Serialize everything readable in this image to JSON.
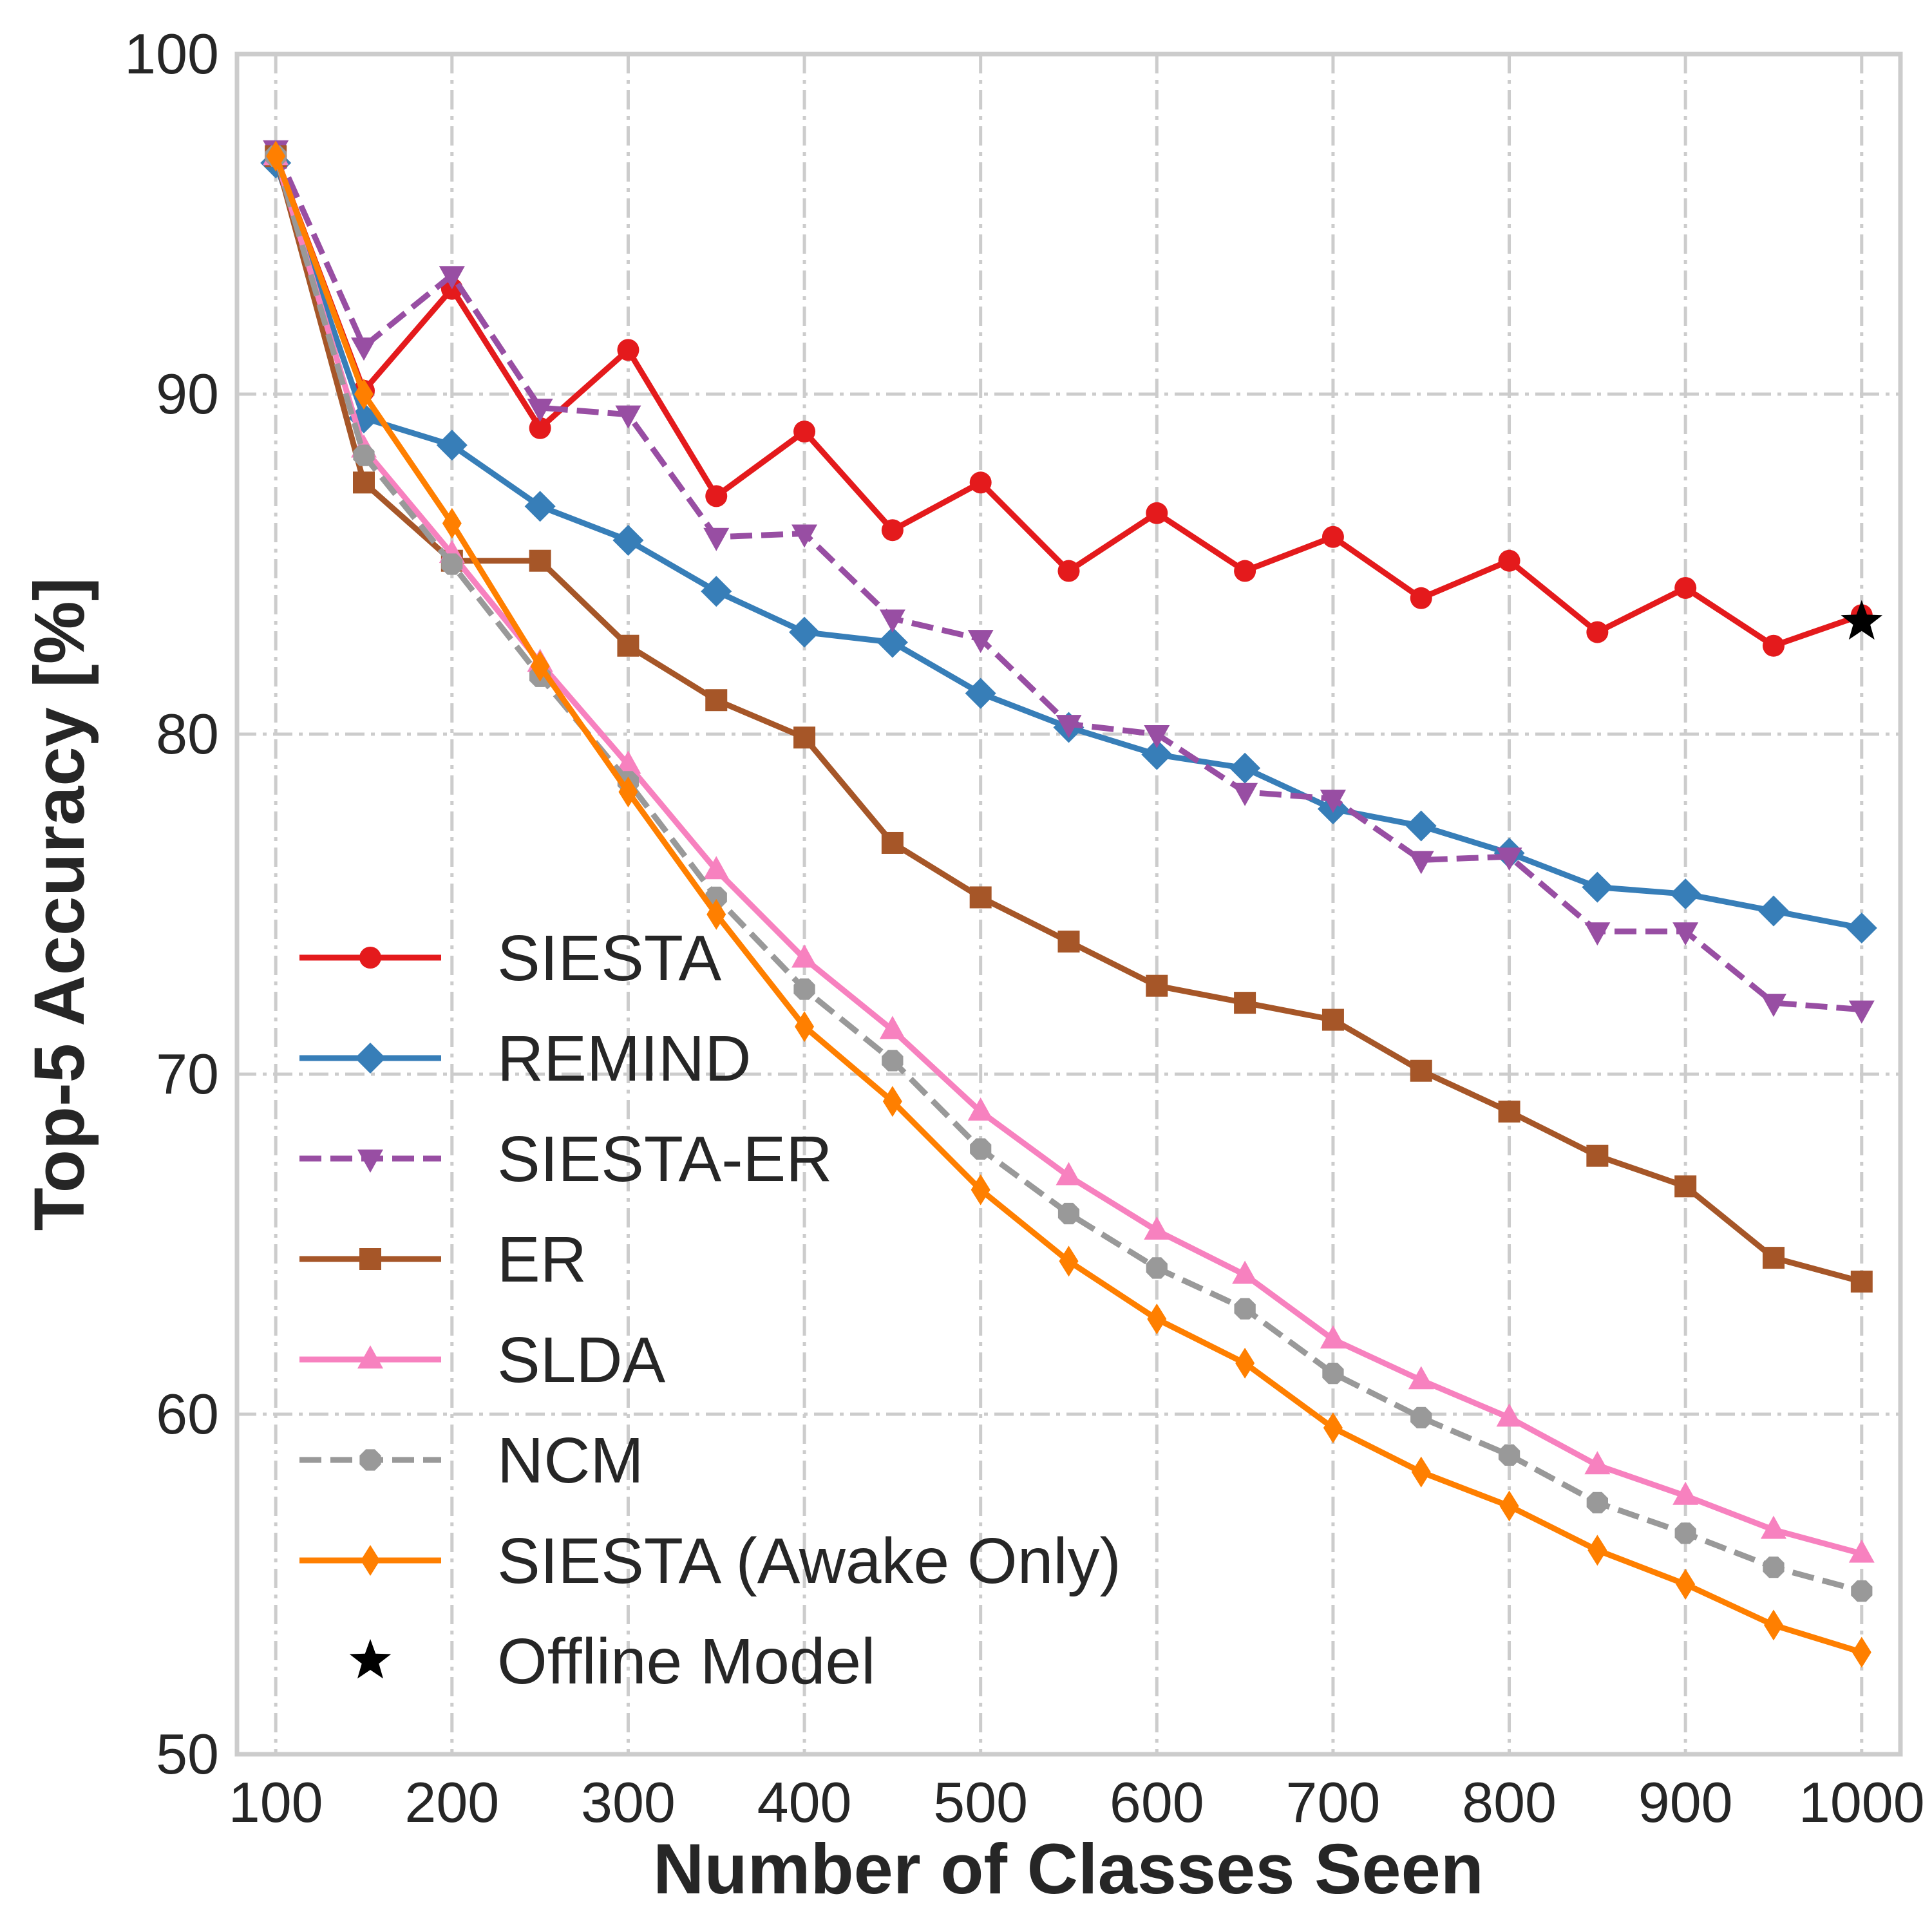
{
  "chart_data": {
    "type": "line",
    "title": "",
    "xlabel": "Number of Classes Seen",
    "ylabel": "Top-5 Accuracy [%]",
    "xlim": [
      78,
      1022
    ],
    "ylim": [
      50,
      100
    ],
    "xticks": [
      100,
      200,
      300,
      400,
      500,
      600,
      700,
      800,
      900,
      1000
    ],
    "yticks": [
      50,
      60,
      70,
      80,
      90,
      100
    ],
    "grid": true,
    "legend_position": "lower-left",
    "x": [
      100,
      150,
      200,
      250,
      300,
      350,
      400,
      450,
      500,
      550,
      600,
      650,
      700,
      750,
      800,
      850,
      900,
      950,
      1000
    ],
    "series": [
      {
        "name": "SIESTA",
        "color": "#e41a1c",
        "marker": "circle",
        "dash": "solid",
        "values": [
          97.0,
          90.1,
          93.1,
          89.0,
          91.3,
          87.0,
          88.9,
          86.0,
          87.4,
          84.8,
          86.5,
          84.8,
          85.8,
          84.0,
          85.1,
          83.0,
          84.3,
          82.6,
          83.5
        ]
      },
      {
        "name": "REMIND",
        "color": "#377eb8",
        "marker": "diamond",
        "dash": "solid",
        "values": [
          96.8,
          89.3,
          88.5,
          86.7,
          85.7,
          84.2,
          83.0,
          82.7,
          81.2,
          80.2,
          79.4,
          79.0,
          77.8,
          77.3,
          76.5,
          75.5,
          75.3,
          74.8,
          74.3
        ]
      },
      {
        "name": "SIESTA-ER",
        "color": "#984ea3",
        "marker": "triangle-down",
        "dash": "dashed",
        "values": [
          97.2,
          91.4,
          93.5,
          89.6,
          89.4,
          85.8,
          85.9,
          83.4,
          82.8,
          80.3,
          80.0,
          78.3,
          78.1,
          76.3,
          76.4,
          74.2,
          74.2,
          72.1,
          71.9
        ]
      },
      {
        "name": "ER",
        "color": "#a65628",
        "marker": "square",
        "dash": "solid",
        "values": [
          97.0,
          87.4,
          85.1,
          85.1,
          82.6,
          81.0,
          79.9,
          76.8,
          75.2,
          73.9,
          72.6,
          72.1,
          71.6,
          70.1,
          68.9,
          67.6,
          66.7,
          64.6,
          63.9
        ]
      },
      {
        "name": "SLDA",
        "color": "#f781bf",
        "marker": "triangle-up",
        "dash": "solid",
        "values": [
          97.0,
          88.4,
          85.3,
          82.1,
          79.1,
          76.0,
          73.4,
          71.3,
          68.9,
          67.0,
          65.4,
          64.1,
          62.2,
          61.0,
          59.9,
          58.5,
          57.6,
          56.6,
          55.9
        ]
      },
      {
        "name": "NCM",
        "color": "#999999",
        "marker": "octagon",
        "dash": "dashed",
        "values": [
          97.0,
          88.2,
          85.0,
          81.7,
          78.6,
          75.2,
          72.5,
          70.4,
          67.8,
          65.9,
          64.3,
          63.1,
          61.2,
          59.9,
          58.8,
          57.4,
          56.5,
          55.5,
          54.8
        ]
      },
      {
        "name": "SIESTA (Awake Only)",
        "color": "#ff7f00",
        "marker": "thin-diamond",
        "dash": "solid",
        "values": [
          97.0,
          90.0,
          86.2,
          82.0,
          78.3,
          74.7,
          71.4,
          69.2,
          66.6,
          64.5,
          62.8,
          61.5,
          59.6,
          58.3,
          57.3,
          56.0,
          55.0,
          53.8,
          53.0
        ]
      }
    ],
    "points": [
      {
        "name": "Offline Model",
        "color": "#000000",
        "marker": "star",
        "x": 1000,
        "y": 83.3
      }
    ]
  }
}
